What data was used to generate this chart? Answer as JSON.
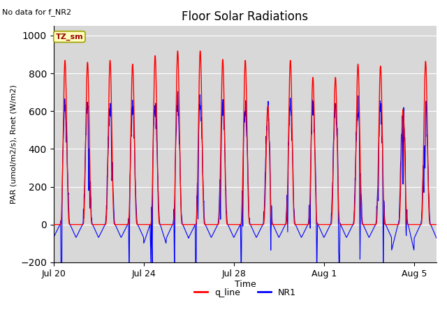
{
  "title": "Floor Solar Radiations",
  "xlabel": "Time",
  "ylabel": "PAR (umol/m2/s), Rnet (W/m2)",
  "no_data_text": "No data for f_NR2",
  "legend_box_text": "TZ_sm",
  "ylim": [
    -200,
    1050
  ],
  "yticks": [
    -200,
    0,
    200,
    400,
    600,
    800,
    1000
  ],
  "xtick_labels": [
    "Jul 20",
    "Jul 24",
    "Jul 28",
    "Aug 1",
    "Aug 5"
  ],
  "xtick_positions": [
    0,
    4,
    8,
    12,
    16
  ],
  "background_color": "#d8d8d8",
  "q_line_color": "red",
  "nr1_color": "blue",
  "legend_box_bg": "#ffffc0",
  "legend_box_border": "#a0a000",
  "n_days": 17,
  "peak_red": [
    870,
    860,
    870,
    850,
    895,
    920,
    920,
    875,
    870,
    630,
    870,
    780,
    780,
    850,
    840,
    610,
    865
  ],
  "peak_blue": [
    670,
    670,
    665,
    660,
    675,
    685,
    685,
    678,
    668,
    638,
    685,
    685,
    680,
    668,
    668,
    668,
    690
  ],
  "trough_blue": [
    -75,
    -75,
    -75,
    -75,
    -110,
    -80,
    -75,
    -75,
    -75,
    -75,
    -75,
    -75,
    -75,
    -75,
    -75,
    -150,
    -80
  ]
}
